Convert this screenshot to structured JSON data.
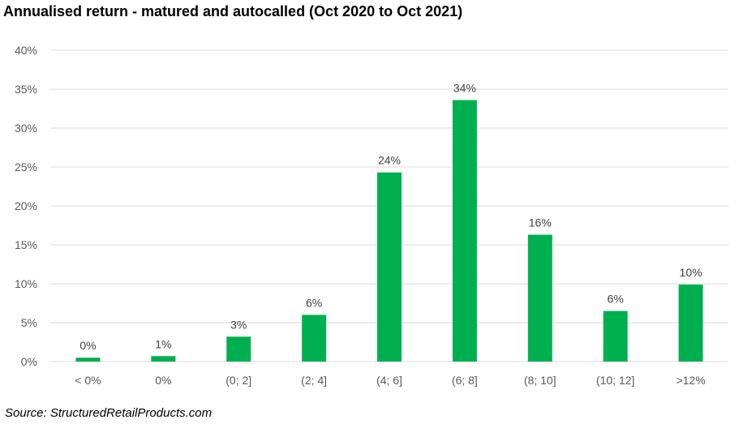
{
  "chart_data": {
    "type": "bar",
    "title": "Annualised return - matured and autocalled (Oct 2020 to Oct 2021)",
    "categories": [
      "< 0%",
      "0%",
      "(0; 2]",
      "(2; 4]",
      "(4; 6]",
      "(6; 8]",
      "(8; 10]",
      "(10; 12]",
      ">12%"
    ],
    "values": [
      0.5,
      0.7,
      3.2,
      6.0,
      24.3,
      33.6,
      16.3,
      6.5,
      9.9
    ],
    "data_labels": [
      "0%",
      "1%",
      "3%",
      "6%",
      "24%",
      "34%",
      "16%",
      "6%",
      "10%"
    ],
    "ytick_labels": [
      "0%",
      "5%",
      "10%",
      "15%",
      "20%",
      "25%",
      "30%",
      "35%",
      "40%"
    ],
    "ylim": [
      0,
      40
    ],
    "ytick_step": 5,
    "grid": true,
    "legend": "none",
    "colors": {
      "bar": "#00b050",
      "grid": "#d9d9d9",
      "axis_text": "#595959",
      "label_text": "#404040"
    }
  },
  "source": "Source: StructuredRetailProducts.com"
}
